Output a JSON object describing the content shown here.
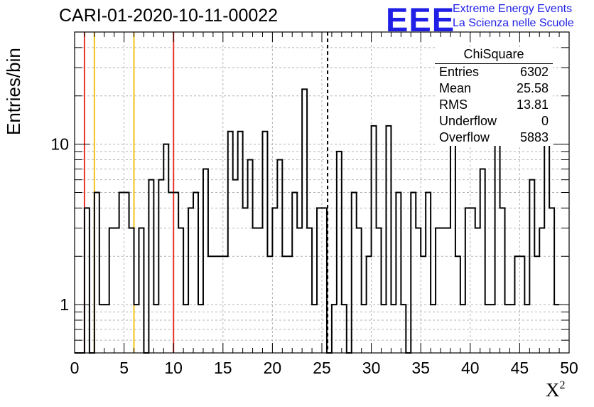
{
  "title": "CARI-01-2020-10-11-00022",
  "logo": {
    "mark": "EEE",
    "line1": "Extreme Energy Events",
    "line2": "La Scienza nelle Scuole",
    "color": "#1f1fe6"
  },
  "stats": {
    "name": "ChiSquare",
    "rows": [
      {
        "label": "Entries",
        "value": "6302"
      },
      {
        "label": "Mean",
        "value": "25.58"
      },
      {
        "label": "RMS",
        "value": "13.81"
      },
      {
        "label": "Underflow",
        "value": "0"
      },
      {
        "label": "Overflow",
        "value": "5883"
      }
    ]
  },
  "chart_data": {
    "type": "histogram",
    "title": "CARI-01-2020-10-11-00022",
    "xlabel": "X",
    "xlabel_superscript": "2",
    "ylabel": "Entries/bin",
    "xlim": [
      0,
      50
    ],
    "ylim": [
      0.5,
      50
    ],
    "yscale": "log",
    "grid": true,
    "x_ticks": [
      "0",
      "5",
      "10",
      "15",
      "20",
      "25",
      "30",
      "35",
      "40",
      "45",
      "50"
    ],
    "y_ticks": [
      "1",
      "10"
    ],
    "bin_width": 0.5,
    "bin_edges_start": 0,
    "values": [
      0,
      0,
      4,
      0,
      5,
      1,
      1,
      3,
      3,
      5,
      5,
      3,
      1,
      3,
      0,
      6,
      1,
      6,
      10,
      5,
      5,
      3,
      1,
      4,
      5,
      1,
      7,
      2,
      2,
      2,
      2,
      12,
      6,
      12,
      4,
      8,
      3,
      3,
      12,
      2,
      4,
      8,
      2,
      2,
      5,
      3,
      22,
      3,
      1,
      4,
      4,
      0,
      1,
      9,
      1,
      0,
      5,
      3,
      1,
      2,
      13,
      3,
      1,
      13,
      1,
      5,
      1,
      0,
      5,
      3,
      2,
      5,
      1,
      3,
      3,
      3,
      13,
      2,
      1,
      4,
      4,
      3,
      7,
      1,
      1,
      18,
      4,
      1,
      1,
      2,
      2,
      1,
      6,
      2,
      3,
      16,
      4,
      1
    ],
    "vertical_lines": [
      {
        "x": 1.0,
        "color": "#e8332a",
        "style": "solid"
      },
      {
        "x": 2.0,
        "color": "#f2c318",
        "style": "solid"
      },
      {
        "x": 6.0,
        "color": "#f2c318",
        "style": "solid"
      },
      {
        "x": 10.0,
        "color": "#e8332a",
        "style": "solid"
      },
      {
        "x": 25.58,
        "color": "#000000",
        "style": "dashed"
      }
    ]
  }
}
